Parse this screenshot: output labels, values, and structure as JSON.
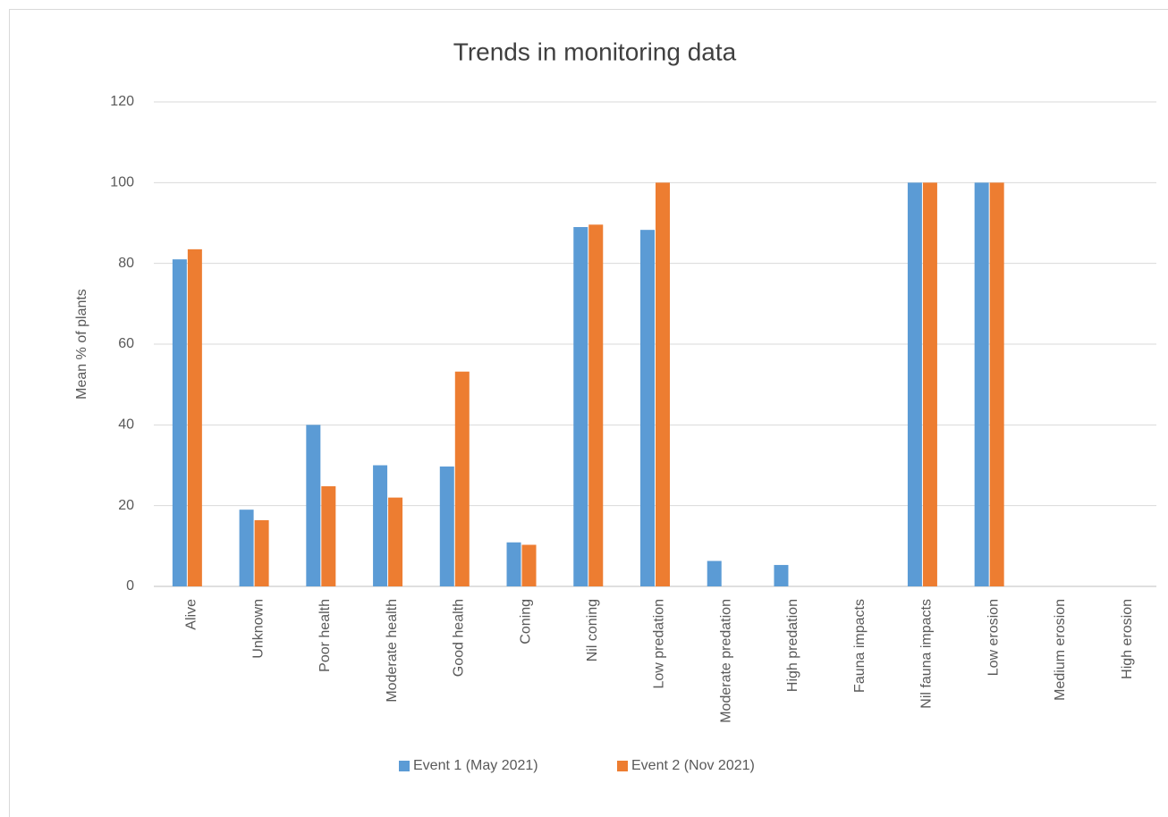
{
  "chart_data": {
    "type": "bar",
    "title": "Trends in monitoring data",
    "y_label": "Mean % of plants",
    "categories": [
      "Alive",
      "Unknown",
      "Poor health",
      "Moderate health",
      "Good health",
      "Coning",
      "Nil coning",
      "Low predation",
      "Moderate predation",
      "High predation",
      "Fauna impacts",
      "Nil fauna impacts",
      "Low erosion",
      "Medium erosion",
      "High erosion"
    ],
    "series": [
      {
        "name": "Event 1 (May 2021)",
        "color": "#5b9bd5",
        "values": [
          81,
          19,
          40,
          30,
          29.7,
          10.9,
          89,
          88.3,
          6.3,
          5.3,
          0,
          100,
          100,
          0,
          0
        ]
      },
      {
        "name": "Event 2 (Nov 2021)",
        "color": "#ed7d31",
        "values": [
          83.5,
          16.4,
          24.8,
          22,
          53.2,
          10.3,
          89.6,
          100,
          0,
          0,
          0,
          100,
          100,
          0,
          0
        ]
      }
    ],
    "ylim": [
      0,
      120
    ],
    "yticks": [
      0,
      20,
      40,
      60,
      80,
      100,
      120
    ],
    "grid": true,
    "legend": "bottom"
  }
}
